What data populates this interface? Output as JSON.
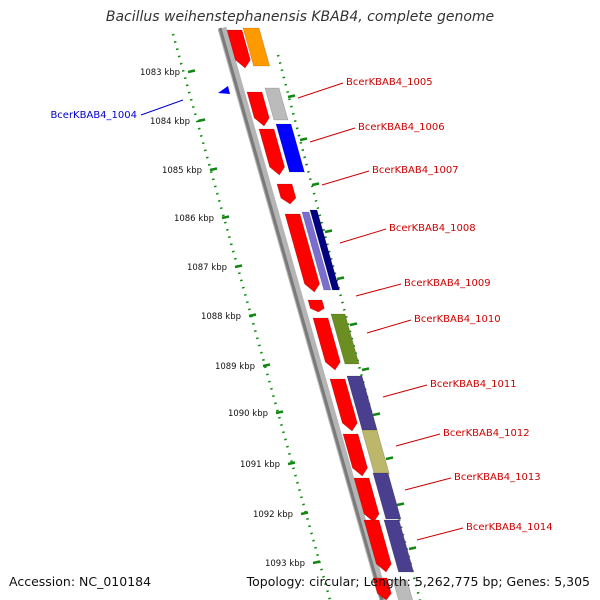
{
  "title": "Bacillus weihenstephanensis KBAB4, complete genome",
  "footer": {
    "accession": "Accession: NC_010184",
    "topology": "Topology: circular; Length: 5,262,775 bp; Genes: 5,305"
  },
  "scale_ticks": [
    "1083 kbp",
    "1084 kbp",
    "1085 kbp",
    "1086 kbp",
    "1087 kbp",
    "1088 kbp",
    "1089 kbp",
    "1090 kbp",
    "1091 kbp",
    "1092 kbp",
    "1093 kbp"
  ],
  "genes": [
    {
      "name": "BcerKBAB4_1004",
      "color": "#0000cc",
      "side": "left"
    },
    {
      "name": "BcerKBAB4_1005",
      "color": "#cc0000",
      "side": "right"
    },
    {
      "name": "BcerKBAB4_1006",
      "color": "#cc0000",
      "side": "right"
    },
    {
      "name": "BcerKBAB4_1007",
      "color": "#cc0000",
      "side": "right"
    },
    {
      "name": "BcerKBAB4_1008",
      "color": "#cc0000",
      "side": "right"
    },
    {
      "name": "BcerKBAB4_1009",
      "color": "#cc0000",
      "side": "right"
    },
    {
      "name": "BcerKBAB4_1010",
      "color": "#cc0000",
      "side": "right"
    },
    {
      "name": "BcerKBAB4_1011",
      "color": "#cc0000",
      "side": "right"
    },
    {
      "name": "BcerKBAB4_1012",
      "color": "#cc0000",
      "side": "right"
    },
    {
      "name": "BcerKBAB4_1013",
      "color": "#cc0000",
      "side": "right"
    },
    {
      "name": "BcerKBAB4_1014",
      "color": "#cc0000",
      "side": "right"
    }
  ],
  "colors": {
    "backbone": "#8c8c8c",
    "scale": "#118811",
    "feature_red": "#ff0000",
    "cog_orange": "#ff9900",
    "cog_gray": "#bbbbbb",
    "cog_blue": "#0000ff",
    "cog_lavender": "#7a6fd0",
    "cog_navy": "#000080",
    "cog_olive": "#6b8e23",
    "cog_slate": "#4a3f8f",
    "cog_khaki": "#bdb76b"
  }
}
